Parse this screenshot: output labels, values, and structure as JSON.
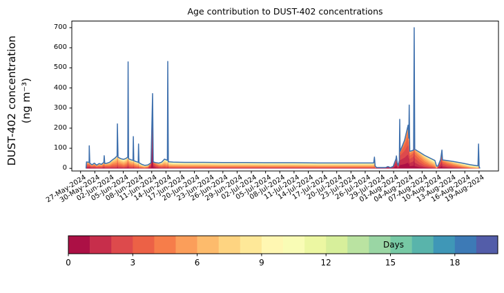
{
  "chart_data": {
    "type": "area",
    "subtype": "age-stacked-area-with-total-line",
    "title": "Age contribution to DUST-402 concentrations",
    "ylabel": [
      "DUST-402 concentration",
      "(ng m⁻³)"
    ],
    "y_ticks": [
      0,
      100,
      200,
      300,
      400,
      500,
      600,
      700
    ],
    "y_axis_range": [
      -13,
      733
    ],
    "x_tick_labels": [
      "27-May-2024",
      "30-May-2024",
      "02-Jun-2024",
      "05-Jun-2024",
      "08-Jun-2024",
      "11-Jun-2024",
      "14-Jun-2024",
      "17-Jun-2024",
      "20-Jun-2024",
      "23-Jun-2024",
      "26-Jun-2024",
      "29-Jun-2024",
      "02-Jul-2024",
      "05-Jul-2024",
      "08-Jul-2024",
      "11-Jul-2024",
      "14-Jul-2024",
      "17-Jul-2024",
      "20-Jul-2024",
      "23-Jul-2024",
      "26-Jul-2024",
      "29-Jul-2024",
      "01-Aug-2024",
      "04-Aug-2024",
      "07-Aug-2024",
      "10-Aug-2024",
      "13-Aug-2024",
      "16-Aug-2024",
      "19-Aug-2024"
    ],
    "x_tick_interval_days": 3,
    "x_axis_range_days": [
      -1.85,
      88.1
    ],
    "grid": false,
    "background": "#ffffff",
    "total_line_color": "#3d6fad",
    "axis_color": "#000000",
    "points": {
      "columns": [
        "day_offset_from_27_May_2024",
        "total_concentration_ng_m3",
        "mean_age_days",
        "age_spread_days"
      ],
      "rows": [
        [
          1.15,
          0,
          3,
          2.5
        ],
        [
          1.25,
          32,
          3,
          2.5
        ],
        [
          1.8,
          30,
          3,
          2.5
        ],
        [
          1.83,
          112,
          2.5,
          2
        ],
        [
          1.95,
          26,
          3,
          2.5
        ],
        [
          2.4,
          18,
          3,
          2.5
        ],
        [
          2.9,
          26,
          3.5,
          2.5
        ],
        [
          3.4,
          16,
          3.5,
          2.5
        ],
        [
          3.9,
          24,
          4,
          2.5
        ],
        [
          4.4,
          20,
          4,
          2.5
        ],
        [
          4.9,
          30,
          3.5,
          2.5
        ],
        [
          4.98,
          63,
          3.5,
          2
        ],
        [
          5.1,
          24,
          4,
          2.5
        ],
        [
          5.6,
          26,
          4,
          2.5
        ],
        [
          6.1,
          30,
          4.5,
          2.5
        ],
        [
          6.7,
          42,
          4.5,
          2.5
        ],
        [
          7.3,
          52,
          5,
          2.5
        ],
        [
          7.7,
          62,
          5,
          2.5
        ],
        [
          7.76,
          221,
          4,
          2.5
        ],
        [
          7.9,
          55,
          5,
          2.5
        ],
        [
          8.5,
          48,
          5,
          2.8
        ],
        [
          9.1,
          45,
          5.5,
          2.8
        ],
        [
          9.6,
          50,
          5,
          2.8
        ],
        [
          9.95,
          56,
          4.5,
          2.5
        ],
        [
          10.02,
          530,
          3.5,
          2.2
        ],
        [
          10.12,
          48,
          4.5,
          2.5
        ],
        [
          10.6,
          43,
          5,
          2.5
        ],
        [
          11.05,
          40,
          5,
          2.5
        ],
        [
          11.12,
          158,
          4.5,
          2.5
        ],
        [
          11.22,
          38,
          5,
          2.5
        ],
        [
          11.7,
          34,
          5.5,
          2.8
        ],
        [
          12.15,
          30,
          5.5,
          2.8
        ],
        [
          12.22,
          121,
          5,
          2.5
        ],
        [
          12.32,
          28,
          6,
          2.8
        ],
        [
          12.9,
          20,
          6,
          3
        ],
        [
          13.5,
          15,
          6,
          3
        ],
        [
          14.2,
          17,
          5,
          3
        ],
        [
          14.85,
          28,
          2,
          1.2
        ],
        [
          15.18,
          372,
          1.2,
          1
        ],
        [
          15.32,
          32,
          1.8,
          1.4
        ],
        [
          15.9,
          28,
          3,
          2
        ],
        [
          16.5,
          26,
          4,
          2.5
        ],
        [
          17.1,
          31,
          5,
          2.8
        ],
        [
          17.7,
          46,
          5.5,
          3
        ],
        [
          18.3,
          40,
          6,
          3
        ],
        [
          18.38,
          532,
          5,
          2.5
        ],
        [
          18.5,
          33,
          6,
          3
        ],
        [
          19.5,
          31,
          6,
          3.2
        ],
        [
          22,
          30,
          6,
          3.2
        ],
        [
          26,
          30,
          6,
          3.2
        ],
        [
          30,
          29,
          6,
          3.2
        ],
        [
          35,
          29,
          6,
          3.2
        ],
        [
          40,
          28,
          6,
          3.2
        ],
        [
          45,
          28,
          6,
          3.2
        ],
        [
          50,
          27,
          6,
          3.2
        ],
        [
          55,
          27,
          6,
          3.2
        ],
        [
          59,
          27,
          6,
          3.2
        ],
        [
          61.8,
          27,
          6,
          3.2
        ],
        [
          61.95,
          56,
          6,
          3
        ],
        [
          62.1,
          12,
          5,
          3
        ],
        [
          62.4,
          4,
          0.8,
          0.8
        ],
        [
          64.3,
          4,
          0.8,
          0.8
        ],
        [
          64.8,
          9,
          1,
          0.9
        ],
        [
          65.3,
          4,
          1,
          0.9
        ],
        [
          65.9,
          10,
          1.2,
          1
        ],
        [
          66.25,
          32,
          1.5,
          1.2
        ],
        [
          66.5,
          48,
          1.5,
          1.2
        ],
        [
          66.58,
          62,
          1.5,
          1.2
        ],
        [
          66.75,
          28,
          1.8,
          1.3
        ],
        [
          66.95,
          14,
          2,
          1.4
        ],
        [
          67.2,
          40,
          1.5,
          1.3
        ],
        [
          67.28,
          244,
          1.5,
          1.3
        ],
        [
          67.36,
          85,
          1.8,
          1.5
        ],
        [
          68.3,
          140,
          2.2,
          1.8
        ],
        [
          69.05,
          215,
          2.5,
          2
        ],
        [
          69.2,
          150,
          2.5,
          2
        ],
        [
          69.28,
          315,
          2.5,
          2
        ],
        [
          69.4,
          85,
          2.5,
          2
        ],
        [
          70.1,
          90,
          2.2,
          1.7
        ],
        [
          70.21,
          92,
          2.2,
          1.6
        ],
        [
          70.33,
          700,
          2.2,
          1.6
        ],
        [
          70.45,
          95,
          2.6,
          1.9
        ],
        [
          71.5,
          80,
          3.5,
          2.2
        ],
        [
          72.5,
          65,
          4.5,
          2.5
        ],
        [
          73.6,
          52,
          5.5,
          2.8
        ],
        [
          74.7,
          39,
          6.5,
          3
        ],
        [
          75.05,
          11,
          7,
          3
        ],
        [
          75.35,
          12,
          2,
          1.4
        ],
        [
          75.9,
          44,
          2,
          1.5
        ],
        [
          76.18,
          91,
          2.2,
          1.6
        ],
        [
          76.3,
          42,
          2.5,
          1.8
        ],
        [
          77.3,
          39,
          3.5,
          2.2
        ],
        [
          78.6,
          34,
          4.5,
          2.6
        ],
        [
          80.5,
          26,
          6,
          3
        ],
        [
          82.2,
          18,
          7.5,
          3.2
        ],
        [
          83.6,
          13,
          8.5,
          3.2
        ],
        [
          83.78,
          13,
          8.5,
          3.2
        ],
        [
          83.9,
          121,
          8.5,
          3
        ],
        [
          84.02,
          9,
          8.5,
          3
        ],
        [
          84.18,
          0,
          8.5,
          3
        ]
      ]
    },
    "colorbar": {
      "label": "Days",
      "min": 0,
      "max": 20,
      "bins": 20,
      "ticks": [
        0,
        3,
        6,
        9,
        12,
        15,
        18
      ],
      "colors": [
        "#ac1045",
        "#c72e4b",
        "#dd4a4c",
        "#ec6146",
        "#f67d4a",
        "#fb9e5a",
        "#fdbb6c",
        "#fed481",
        "#fee898",
        "#fff7b2",
        "#f9fcb5",
        "#ecf7a2",
        "#d7ef9b",
        "#bae3a1",
        "#9ad6a4",
        "#77c9a5",
        "#59b4ab",
        "#3f97b7",
        "#3d7ab6",
        "#535da9"
      ]
    }
  }
}
